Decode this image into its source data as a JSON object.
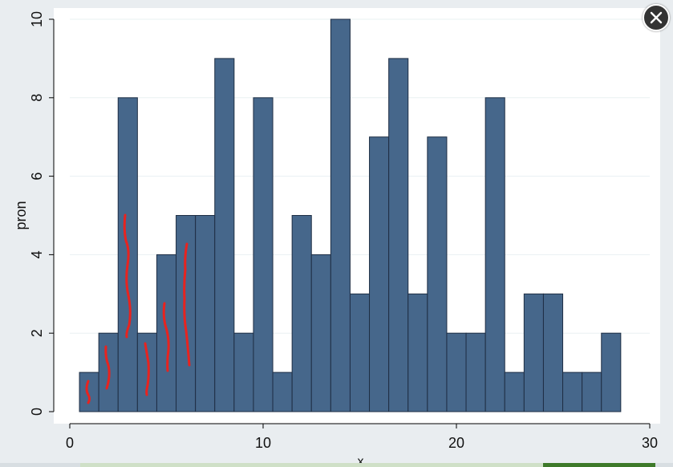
{
  "chart_data": {
    "type": "bar",
    "title": "",
    "xlabel": "x",
    "ylabel": "pron",
    "xlim": [
      0,
      30
    ],
    "ylim": [
      0,
      10
    ],
    "xticks": [
      0,
      10,
      20,
      30
    ],
    "yticks": [
      0,
      2,
      4,
      6,
      8,
      10
    ],
    "grid": true,
    "bar_color": "#46678b",
    "bar_edge_color": "#1e2e44",
    "bin_width": 1,
    "x": [
      1,
      2,
      3,
      4,
      5,
      6,
      7,
      8,
      9,
      10,
      11,
      12,
      13,
      14,
      15,
      16,
      17,
      18,
      19,
      20,
      21,
      22,
      23,
      24,
      25,
      26,
      27,
      28
    ],
    "values": [
      1,
      2,
      8,
      2,
      4,
      5,
      5,
      9,
      2,
      8,
      1,
      5,
      4,
      10,
      3,
      7,
      9,
      3,
      7,
      2,
      2,
      8,
      1,
      3,
      3,
      1,
      1,
      2
    ],
    "annotation_color": "#e8231f"
  },
  "close_icon": "close-icon"
}
